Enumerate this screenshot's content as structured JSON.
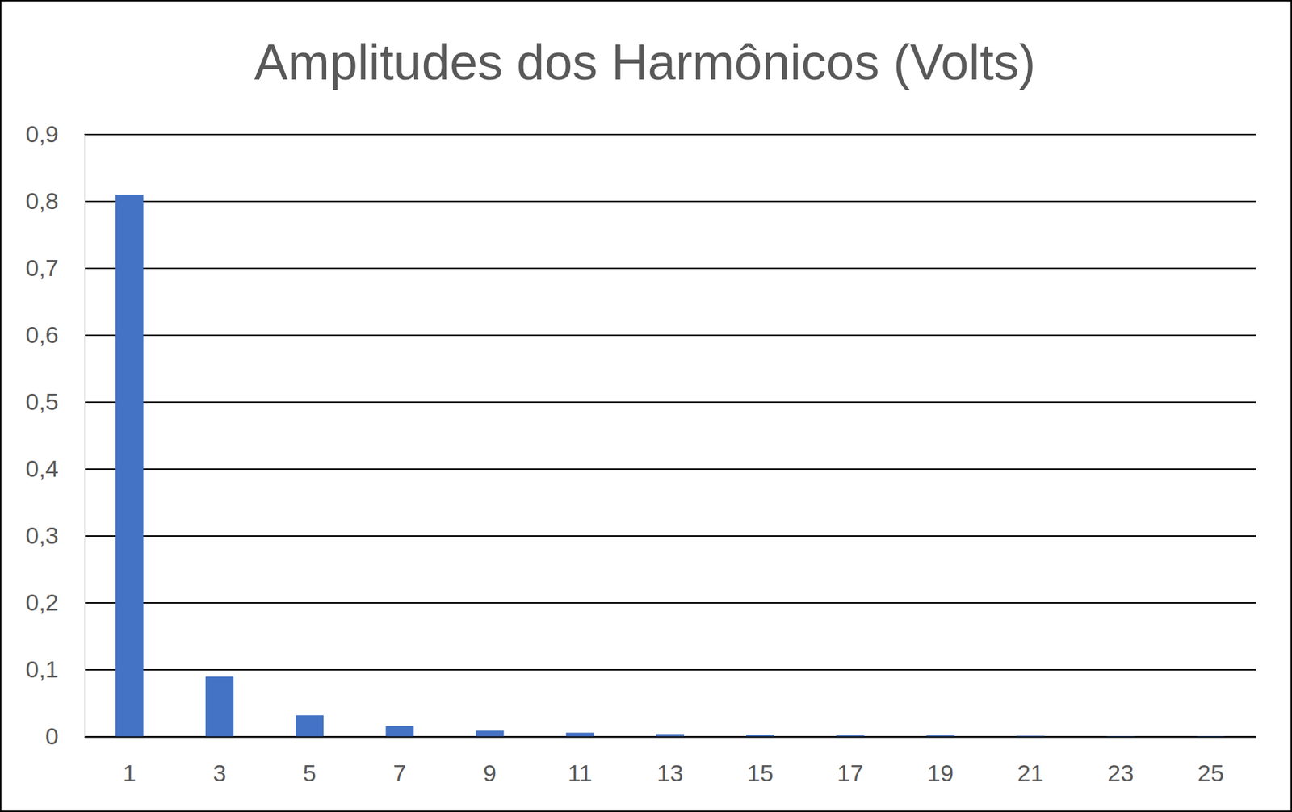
{
  "chart_data": {
    "type": "bar",
    "title": "Amplitudes dos Harmônicos (Volts)",
    "categories": [
      1,
      3,
      5,
      7,
      9,
      11,
      13,
      15,
      17,
      19,
      21,
      23,
      25
    ],
    "values": [
      0.81,
      0.09,
      0.032,
      0.016,
      0.009,
      0.006,
      0.004,
      0.003,
      0.002,
      0.002,
      0.0015,
      0.001,
      0.001
    ],
    "color": "#4472c4",
    "ylim": [
      0,
      0.9
    ],
    "yticks": [
      {
        "value": 0,
        "label": "0"
      },
      {
        "value": 0.1,
        "label": "0,1"
      },
      {
        "value": 0.2,
        "label": "0,2"
      },
      {
        "value": 0.3,
        "label": "0,3"
      },
      {
        "value": 0.4,
        "label": "0,4"
      },
      {
        "value": 0.5,
        "label": "0,5"
      },
      {
        "value": 0.6,
        "label": "0,6"
      },
      {
        "value": 0.7,
        "label": "0,7"
      },
      {
        "value": 0.8,
        "label": "0,8"
      },
      {
        "value": 0.9,
        "label": "0,9"
      }
    ],
    "grid": true
  }
}
